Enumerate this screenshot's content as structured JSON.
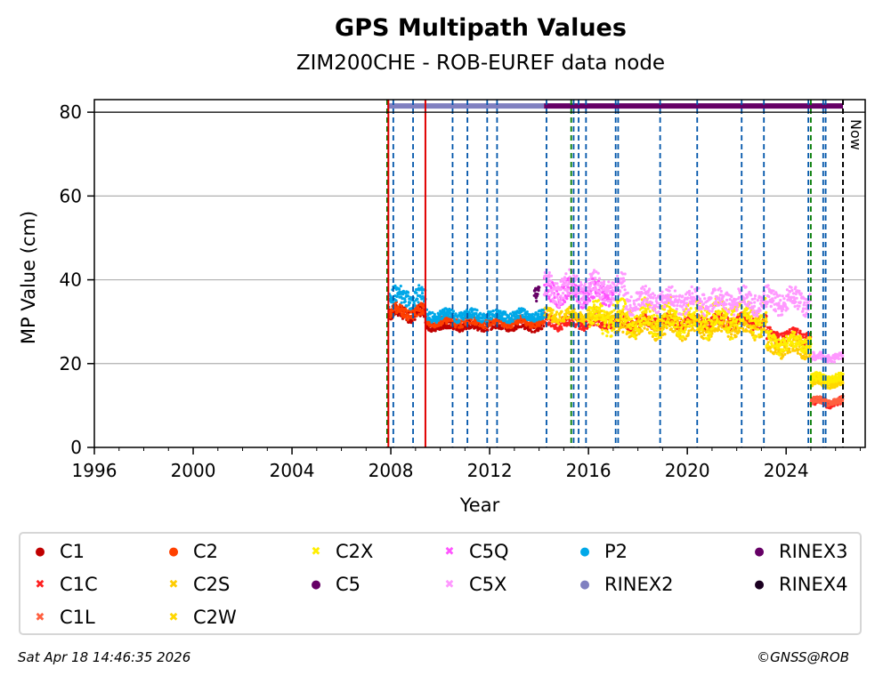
{
  "chart_data": {
    "type": "scatter",
    "title": "GPS Multipath Values",
    "subtitle": "ZIM200CHE - ROB-EUREF data node",
    "xlabel": "Year",
    "ylabel": "MP Value (cm)",
    "xlim": [
      1996,
      2027.2
    ],
    "ylim": [
      0,
      83
    ],
    "x_ticks": [
      1996,
      2000,
      2004,
      2008,
      2012,
      2016,
      2020,
      2024
    ],
    "y_ticks": [
      0,
      20,
      40,
      60,
      80
    ],
    "now_label": "Now",
    "now_year": 2026.3,
    "top_line_y": 80,
    "rinex2_period": [
      2007.85,
      2014.2
    ],
    "rinex3_period": [
      2014.2,
      2026.3
    ],
    "event_lines": {
      "blue": [
        2008.1,
        2008.9,
        2010.5,
        2011.1,
        2011.9,
        2012.3,
        2014.3,
        2015.4,
        2015.6,
        2015.9,
        2017.1,
        2017.2,
        2018.9,
        2020.4,
        2022.2,
        2023.1,
        2024.9,
        2025.5,
        2025.6
      ],
      "green": [
        2007.85,
        2015.3,
        2025.0
      ],
      "red": [
        2007.9,
        2009.4
      ],
      "black": [
        2026.3
      ]
    },
    "series": [
      {
        "name": "C1",
        "color": "#c00000",
        "segments": [
          [
            2007.9,
            2009.4,
            32,
            1.5
          ],
          [
            2009.4,
            2014.2,
            29,
            1.0
          ]
        ]
      },
      {
        "name": "C1C",
        "color": "#ff2020",
        "segments": [
          [
            2014.2,
            2023.2,
            30,
            1.5
          ],
          [
            2023.2,
            2025.0,
            26.5,
            1.5
          ],
          [
            2025.0,
            2026.3,
            10.8,
            1.0
          ]
        ]
      },
      {
        "name": "C1L",
        "color": "#ff6040",
        "segments": [
          [
            2025.0,
            2026.3,
            11,
            0.8
          ]
        ]
      },
      {
        "name": "C2",
        "color": "#ff4000",
        "segments": [
          [
            2007.9,
            2009.4,
            32.5,
            1.5
          ],
          [
            2009.4,
            2014.2,
            30,
            1.0
          ]
        ]
      },
      {
        "name": "C2S",
        "color": "#ffcc00",
        "segments": [
          [
            2017.0,
            2023.2,
            29,
            2.5
          ],
          [
            2023.2,
            2025.0,
            24,
            2.0
          ],
          [
            2025.0,
            2026.3,
            16,
            1.0
          ]
        ]
      },
      {
        "name": "C2W",
        "color": "#ffd700",
        "segments": [
          [
            2014.2,
            2017.0,
            31.5,
            1.5
          ],
          [
            2025.0,
            2026.3,
            15.5,
            1.0
          ]
        ]
      },
      {
        "name": "C2X",
        "color": "#ffee00",
        "segments": [
          [
            2016.0,
            2023.2,
            31,
            3.5
          ],
          [
            2023.2,
            2025.0,
            25,
            2.0
          ],
          [
            2025.0,
            2026.3,
            16.5,
            1.0
          ]
        ]
      },
      {
        "name": "C5",
        "color": "#660066",
        "segments": [
          [
            2013.8,
            2014.0,
            37,
            2.0
          ]
        ]
      },
      {
        "name": "C5Q",
        "color": "#ff55ff",
        "segments": [
          [
            2014.2,
            2017.0,
            37,
            2.5
          ]
        ]
      },
      {
        "name": "C5X",
        "color": "#ff99ff",
        "segments": [
          [
            2014.2,
            2017.5,
            38,
            3.0
          ],
          [
            2017.5,
            2025.0,
            35,
            2.5
          ],
          [
            2025.0,
            2026.3,
            21.5,
            1.0
          ]
        ]
      },
      {
        "name": "P2",
        "color": "#00a8e8",
        "segments": [
          [
            2007.9,
            2009.4,
            36,
            2.0
          ],
          [
            2009.4,
            2014.2,
            31.5,
            1.2
          ]
        ]
      },
      {
        "name": "RINEX2",
        "color": "#8080c0",
        "segments": []
      },
      {
        "name": "RINEX3",
        "color": "#660066",
        "segments": []
      },
      {
        "name": "RINEX4",
        "color": "#1a0020",
        "segments": []
      }
    ]
  },
  "legend": [
    {
      "label": "C1",
      "symbol": "●",
      "color": "#c00000"
    },
    {
      "label": "C1C",
      "symbol": "✖",
      "color": "#ff2020"
    },
    {
      "label": "C1L",
      "symbol": "✖",
      "color": "#ff6040"
    },
    {
      "label": "C2",
      "symbol": "●",
      "color": "#ff4000"
    },
    {
      "label": "C2S",
      "symbol": "✖",
      "color": "#ffcc00"
    },
    {
      "label": "C2W",
      "symbol": "✖",
      "color": "#ffd700"
    },
    {
      "label": "C2X",
      "symbol": "✖",
      "color": "#ffee00"
    },
    {
      "label": "C5",
      "symbol": "●",
      "color": "#660066"
    },
    {
      "label": "C5Q",
      "symbol": "✖",
      "color": "#ff55ff"
    },
    {
      "label": "C5X",
      "symbol": "✖",
      "color": "#ff99ff"
    },
    {
      "label": "P2",
      "symbol": "●",
      "color": "#00a8e8"
    },
    {
      "label": "RINEX2",
      "symbol": "●",
      "color": "#8080c0"
    },
    {
      "label": "RINEX3",
      "symbol": "●",
      "color": "#660066"
    },
    {
      "label": "RINEX4",
      "symbol": "●",
      "color": "#1a0020"
    }
  ],
  "footer": {
    "timestamp": "Sat Apr 18 14:46:35 2026",
    "copyright": "©GNSS@ROB"
  }
}
